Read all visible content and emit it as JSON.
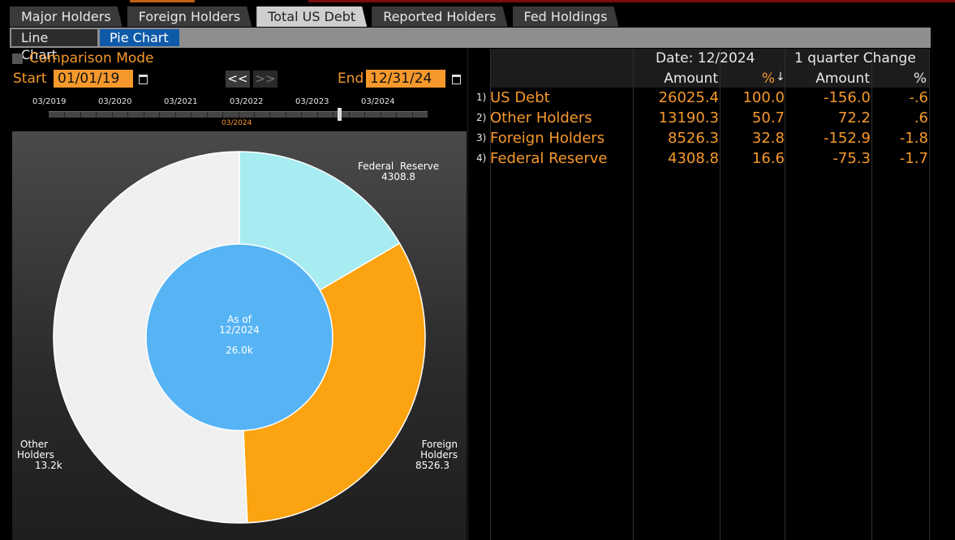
{
  "tabs": [
    "Major Holders",
    "Foreign Holders",
    "Total US Debt",
    "Reported Holders",
    "Fed Holdings"
  ],
  "active_tab": "Total US Debt",
  "subtabs": {
    "line": "Line Chart",
    "pie": "Pie Chart"
  },
  "controls": {
    "comparison_label": "Comparison Mode",
    "start_label": "Start",
    "start_value": "01/01/19",
    "end_label": "End",
    "end_value": "12/31/24",
    "prev_label": "<<",
    "next_label": ">>"
  },
  "timeline": {
    "labels": [
      "03/2019",
      "03/2020",
      "03/2021",
      "03/2022",
      "03/2023",
      "03/2024"
    ],
    "current": "03/2024"
  },
  "pie": {
    "center_line1": "As of",
    "center_line2": "12/2024",
    "center_total": "26.0k",
    "center_color": "#56b4f5",
    "slices": [
      {
        "name": "Federal Reserve",
        "display": "4308.8",
        "value": 4308.8,
        "color": "#a6ecf0"
      },
      {
        "name": "Foreign Holders",
        "display": "8526.3",
        "value": 8526.3,
        "color": "#fca311"
      },
      {
        "name": "Other Holders",
        "display": "13.2k",
        "value": 13190.3,
        "color": "#f0f0f0"
      }
    ],
    "label_fed_1": "Federal  Reserve",
    "label_fed_2": "4308.8",
    "label_for_1": "Foreign",
    "label_for_2": "Holders",
    "label_for_3": "8526.3",
    "label_oth_1": "Other",
    "label_oth_2": "Holders",
    "label_oth_3": "13.2k"
  },
  "table": {
    "date_label": "Date: 12/2024",
    "change_label": "1 quarter Change",
    "col_amount": "Amount",
    "col_pct": "%",
    "col_chg_amount": "Amount",
    "col_chg_pct": "%",
    "rows": [
      {
        "idx": "1)",
        "name": "US Debt",
        "amount": "26025.4",
        "pct": "100.0",
        "chg": "-156.0",
        "chg_pct": "-.6"
      },
      {
        "idx": "2)",
        "name": "Other Holders",
        "amount": "13190.3",
        "pct": "50.7",
        "chg": "72.2",
        "chg_pct": ".6"
      },
      {
        "idx": "3)",
        "name": "Foreign Holders",
        "amount": "8526.3",
        "pct": "32.8",
        "chg": "-152.9",
        "chg_pct": "-1.8"
      },
      {
        "idx": "4)",
        "name": "Federal Reserve",
        "amount": "4308.8",
        "pct": "16.6",
        "chg": "-75.3",
        "chg_pct": "-1.7"
      }
    ]
  }
}
